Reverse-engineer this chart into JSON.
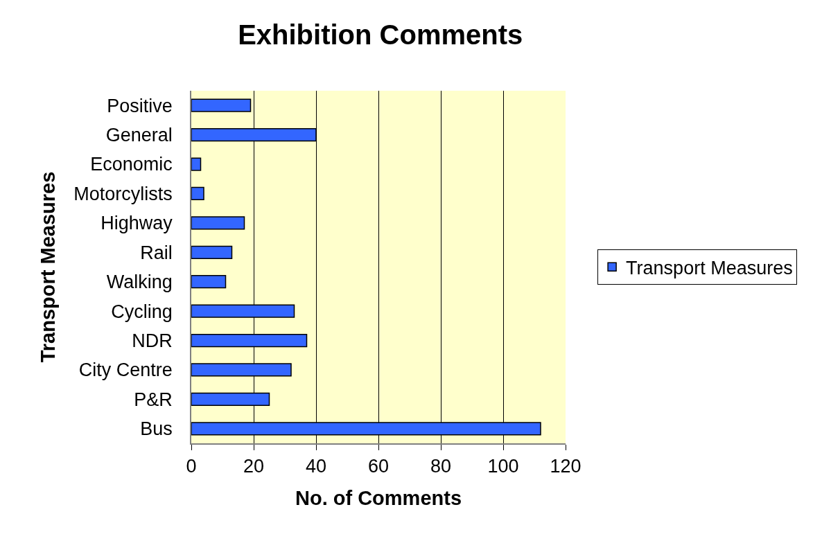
{
  "chart_data": {
    "type": "bar",
    "orientation": "horizontal",
    "title": "Exhibition Comments",
    "xlabel": "No. of Comments",
    "ylabel": "Transport Measures",
    "categories": [
      "Positive",
      "General",
      "Economic",
      "Motorcylists",
      "Highway",
      "Rail",
      "Walking",
      "Cycling",
      "NDR",
      "City Centre",
      "P&R",
      "Bus"
    ],
    "series": [
      {
        "name": "Transport Measures",
        "color": "#3366ff",
        "values": [
          19,
          40,
          3,
          4,
          17,
          13,
          11,
          33,
          37,
          32,
          25,
          112
        ]
      }
    ],
    "xlim": [
      0,
      120
    ],
    "xticks": [
      0,
      20,
      40,
      60,
      80,
      100,
      120
    ],
    "grid": "x",
    "legend": "right"
  }
}
